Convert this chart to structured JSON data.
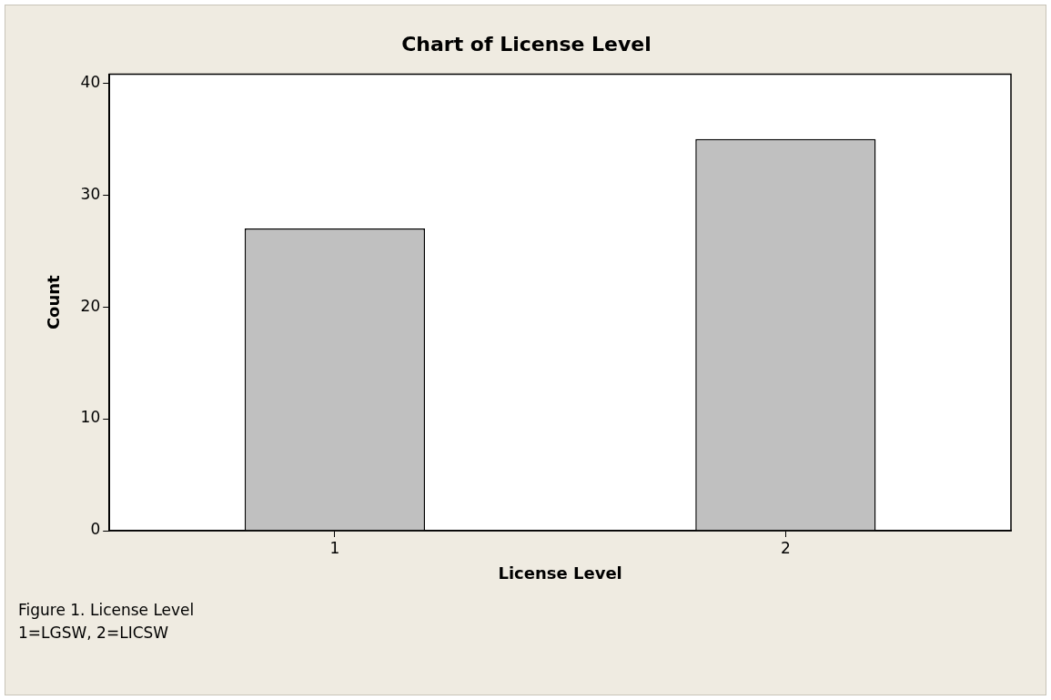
{
  "chart_data": {
    "type": "bar",
    "title": "Chart of License Level",
    "xlabel": "License Level",
    "ylabel": "Count",
    "categories": [
      "1",
      "2"
    ],
    "values": [
      27,
      35
    ],
    "color": "#c0c0c0",
    "ylim": [
      0,
      40.8
    ],
    "yticks": [
      0,
      10,
      20,
      30,
      40
    ],
    "grid": false,
    "legend": false,
    "annotations": [
      "Figure 1. License Level",
      "1=LGSW, 2=LICSW"
    ]
  }
}
